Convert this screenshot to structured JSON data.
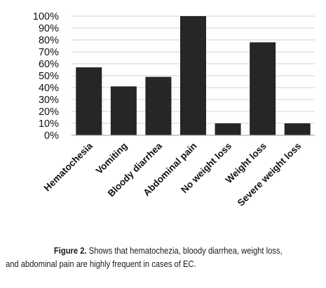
{
  "chart_data": {
    "type": "bar",
    "categories": [
      "Hematochesia",
      "Vomiting",
      "Bloody diarrhea",
      "Abdominal pain",
      "No weight loss",
      "Weight loss",
      "Severe weight loss"
    ],
    "values": [
      57,
      41,
      49,
      100,
      10,
      78,
      10
    ],
    "yticks": [
      "0%",
      "10%",
      "20%",
      "30%",
      "40%",
      "50%",
      "60%",
      "70%",
      "80%",
      "90%",
      "100%"
    ],
    "ylim": [
      0,
      100
    ],
    "grid": true,
    "bar_color": "#262626",
    "grid_color": "#d0d0d0"
  },
  "caption": {
    "lead": "Figure 2.",
    "line1_rest": "Shows that hematochezia, bloody diarrhea, weight loss,",
    "line2": "and abdominal pain are highly frequent in cases of EC."
  }
}
